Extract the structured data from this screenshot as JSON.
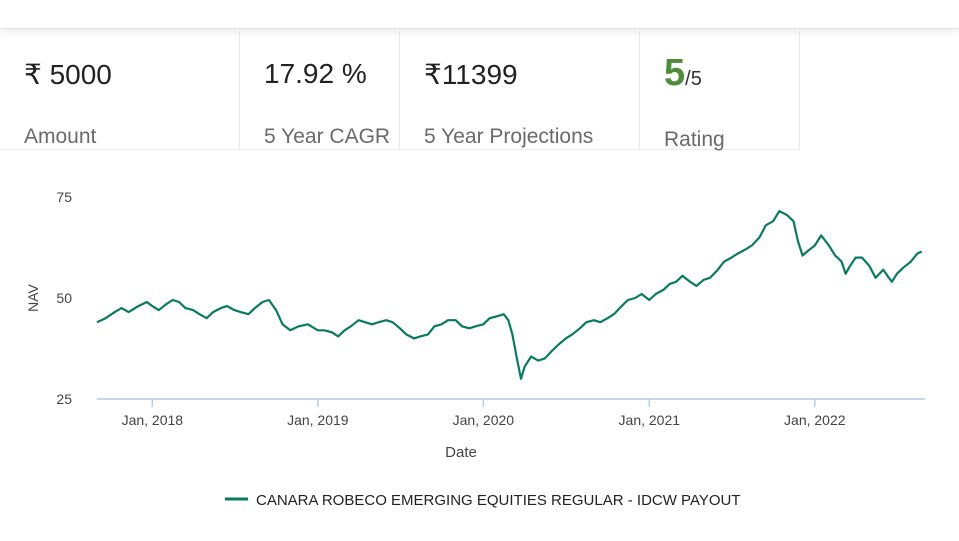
{
  "stats": {
    "amount": {
      "value": "₹ 5000",
      "label": "Amount"
    },
    "cagr": {
      "value": "17.92 %",
      "label": "5 Year CAGR"
    },
    "projection": {
      "value": "₹11399",
      "label": "5 Year Projections"
    },
    "rating": {
      "value": "5",
      "suffix": "/5",
      "label": "Rating"
    }
  },
  "colors": {
    "series": "#0a7a60",
    "rating": "#4e8c3a"
  },
  "chart_data": {
    "type": "line",
    "xlabel": "Date",
    "ylabel": "NAV",
    "ylim": [
      25,
      75
    ],
    "xlim": [
      "2017-09-01",
      "2022-09-01"
    ],
    "yticks": [
      25,
      50,
      75
    ],
    "xticks": [
      "2018-01-01",
      "2019-01-01",
      "2020-01-01",
      "2021-01-01",
      "2022-01-01"
    ],
    "xtick_labels": [
      "Jan, 2018",
      "Jan, 2019",
      "Jan, 2020",
      "Jan, 2021",
      "Jan, 2022"
    ],
    "legend": "bottom",
    "grid": false,
    "series": [
      {
        "name": "CANARA ROBECO EMERGING EQUITIES REGULAR - IDCW PAYOUT",
        "color": "#0a7a60",
        "points": [
          [
            "2017-09-01",
            44.0
          ],
          [
            "2017-09-20",
            45.0
          ],
          [
            "2017-10-10",
            46.5
          ],
          [
            "2017-10-25",
            47.5
          ],
          [
            "2017-11-10",
            46.5
          ],
          [
            "2017-12-01",
            48.0
          ],
          [
            "2017-12-20",
            49.0
          ],
          [
            "2018-01-01",
            48.0
          ],
          [
            "2018-01-15",
            47.0
          ],
          [
            "2018-02-01",
            48.5
          ],
          [
            "2018-02-15",
            49.5
          ],
          [
            "2018-03-01",
            49.0
          ],
          [
            "2018-03-15",
            47.5
          ],
          [
            "2018-04-01",
            47.0
          ],
          [
            "2018-04-15",
            46.0
          ],
          [
            "2018-05-01",
            45.0
          ],
          [
            "2018-05-15",
            46.5
          ],
          [
            "2018-06-01",
            47.5
          ],
          [
            "2018-06-15",
            48.0
          ],
          [
            "2018-07-01",
            47.0
          ],
          [
            "2018-07-15",
            46.5
          ],
          [
            "2018-08-01",
            46.0
          ],
          [
            "2018-08-15",
            47.5
          ],
          [
            "2018-09-01",
            49.0
          ],
          [
            "2018-09-15",
            49.5
          ],
          [
            "2018-10-01",
            47.0
          ],
          [
            "2018-10-15",
            43.5
          ],
          [
            "2018-11-01",
            42.0
          ],
          [
            "2018-11-20",
            43.0
          ],
          [
            "2018-12-10",
            43.5
          ],
          [
            "2019-01-01",
            42.0
          ],
          [
            "2019-01-15",
            42.0
          ],
          [
            "2019-02-01",
            41.5
          ],
          [
            "2019-02-15",
            40.5
          ],
          [
            "2019-03-01",
            42.0
          ],
          [
            "2019-03-15",
            43.0
          ],
          [
            "2019-04-01",
            44.5
          ],
          [
            "2019-04-15",
            44.0
          ],
          [
            "2019-05-01",
            43.5
          ],
          [
            "2019-05-15",
            44.0
          ],
          [
            "2019-06-01",
            44.5
          ],
          [
            "2019-06-15",
            44.0
          ],
          [
            "2019-07-01",
            42.5
          ],
          [
            "2019-07-15",
            41.0
          ],
          [
            "2019-08-01",
            40.0
          ],
          [
            "2019-08-15",
            40.5
          ],
          [
            "2019-09-01",
            41.0
          ],
          [
            "2019-09-15",
            43.0
          ],
          [
            "2019-10-01",
            43.5
          ],
          [
            "2019-10-15",
            44.5
          ],
          [
            "2019-11-01",
            44.5
          ],
          [
            "2019-11-15",
            43.0
          ],
          [
            "2019-12-01",
            42.5
          ],
          [
            "2019-12-15",
            43.0
          ],
          [
            "2020-01-01",
            43.5
          ],
          [
            "2020-01-15",
            45.0
          ],
          [
            "2020-02-01",
            45.5
          ],
          [
            "2020-02-15",
            46.0
          ],
          [
            "2020-02-25",
            44.5
          ],
          [
            "2020-03-05",
            41.0
          ],
          [
            "2020-03-15",
            35.0
          ],
          [
            "2020-03-24",
            30.0
          ],
          [
            "2020-04-01",
            33.0
          ],
          [
            "2020-04-15",
            35.5
          ],
          [
            "2020-05-01",
            34.5
          ],
          [
            "2020-05-15",
            35.0
          ],
          [
            "2020-06-01",
            37.0
          ],
          [
            "2020-06-15",
            38.5
          ],
          [
            "2020-07-01",
            40.0
          ],
          [
            "2020-07-15",
            41.0
          ],
          [
            "2020-08-01",
            42.5
          ],
          [
            "2020-08-15",
            44.0
          ],
          [
            "2020-09-01",
            44.5
          ],
          [
            "2020-09-15",
            44.0
          ],
          [
            "2020-10-01",
            45.0
          ],
          [
            "2020-10-15",
            46.0
          ],
          [
            "2020-11-01",
            48.0
          ],
          [
            "2020-11-15",
            49.5
          ],
          [
            "2020-12-01",
            50.0
          ],
          [
            "2020-12-15",
            51.0
          ],
          [
            "2021-01-01",
            49.5
          ],
          [
            "2021-01-15",
            51.0
          ],
          [
            "2021-02-01",
            52.0
          ],
          [
            "2021-02-15",
            53.5
          ],
          [
            "2021-03-01",
            54.0
          ],
          [
            "2021-03-15",
            55.5
          ],
          [
            "2021-04-01",
            54.0
          ],
          [
            "2021-04-15",
            53.0
          ],
          [
            "2021-05-01",
            54.5
          ],
          [
            "2021-05-15",
            55.0
          ],
          [
            "2021-06-01",
            57.0
          ],
          [
            "2021-06-15",
            59.0
          ],
          [
            "2021-07-01",
            60.0
          ],
          [
            "2021-07-15",
            61.0
          ],
          [
            "2021-08-01",
            62.0
          ],
          [
            "2021-08-15",
            63.0
          ],
          [
            "2021-09-01",
            65.0
          ],
          [
            "2021-09-15",
            68.0
          ],
          [
            "2021-10-01",
            69.0
          ],
          [
            "2021-10-15",
            71.5
          ],
          [
            "2021-11-01",
            70.5
          ],
          [
            "2021-11-15",
            69.0
          ],
          [
            "2021-11-25",
            64.0
          ],
          [
            "2021-12-05",
            60.5
          ],
          [
            "2021-12-15",
            61.5
          ],
          [
            "2022-01-01",
            63.0
          ],
          [
            "2022-01-15",
            65.5
          ],
          [
            "2022-02-01",
            63.0
          ],
          [
            "2022-02-15",
            60.5
          ],
          [
            "2022-03-01",
            59.0
          ],
          [
            "2022-03-10",
            56.0
          ],
          [
            "2022-03-20",
            58.0
          ],
          [
            "2022-04-01",
            60.0
          ],
          [
            "2022-04-15",
            60.0
          ],
          [
            "2022-05-01",
            58.0
          ],
          [
            "2022-05-15",
            55.0
          ],
          [
            "2022-06-01",
            57.0
          ],
          [
            "2022-06-10",
            55.5
          ],
          [
            "2022-06-20",
            54.0
          ],
          [
            "2022-07-01",
            56.0
          ],
          [
            "2022-07-15",
            57.5
          ],
          [
            "2022-08-01",
            59.0
          ],
          [
            "2022-08-15",
            61.0
          ],
          [
            "2022-08-25",
            61.5
          ]
        ]
      }
    ]
  }
}
